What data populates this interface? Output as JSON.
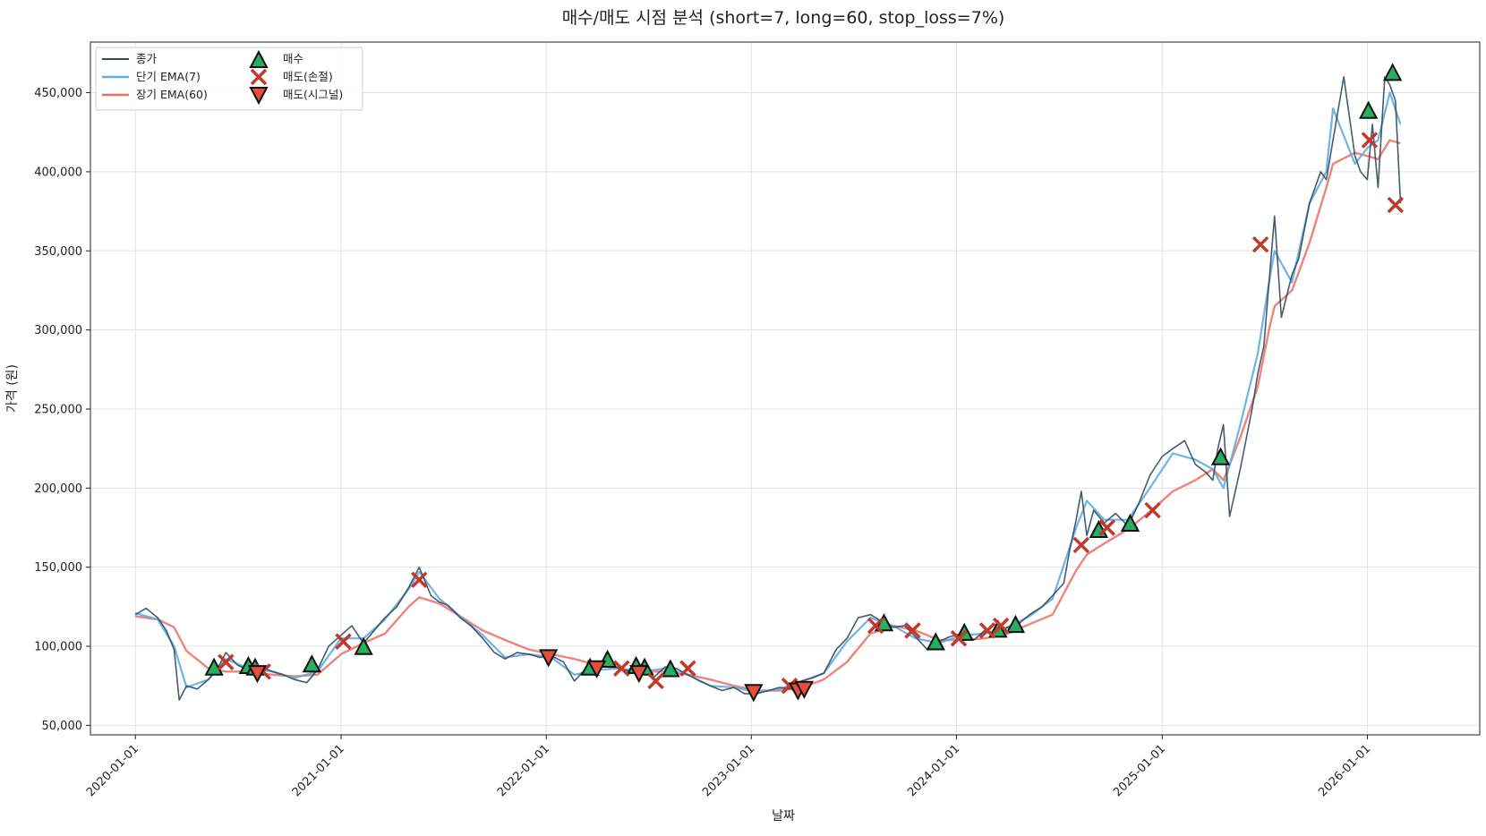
{
  "chart_data": {
    "type": "line",
    "title": "매수/매도 시점 분석 (short=7, long=60, stop_loss=7%)",
    "xlabel": "날짜",
    "ylabel": "가격 (원)",
    "xlim": [
      "2019-10-13",
      "2026-07-20"
    ],
    "ylim": [
      44000,
      482000
    ],
    "grid": true,
    "legend_position": "top-left",
    "x_ticks": [
      "2020-01-01",
      "2021-01-01",
      "2022-01-01",
      "2023-01-01",
      "2024-01-01",
      "2025-01-01",
      "2026-01-01"
    ],
    "y_ticks": [
      50000,
      100000,
      150000,
      200000,
      250000,
      300000,
      350000,
      400000,
      450000
    ],
    "y_tick_labels": [
      "50,000",
      "100,000",
      "150,000",
      "200,000",
      "250,000",
      "300,000",
      "350,000",
      "400,000",
      "450,000"
    ],
    "colors": {
      "close": "#34495e",
      "ema_short": "#5dade2",
      "ema_long": "#ec7063",
      "buy": "#27ae60",
      "sell_stop": "#c0392b",
      "sell_signal": "#e74c3c"
    },
    "series": [
      {
        "name": "종가",
        "key": "close",
        "x": [
          "2020-01-01",
          "2020-01-20",
          "2020-02-10",
          "2020-02-25",
          "2020-03-10",
          "2020-03-19",
          "2020-04-01",
          "2020-04-20",
          "2020-05-10",
          "2020-05-25",
          "2020-06-10",
          "2020-07-01",
          "2020-07-20",
          "2020-08-10",
          "2020-09-01",
          "2020-09-20",
          "2020-10-10",
          "2020-11-01",
          "2020-11-20",
          "2020-12-10",
          "2021-01-01",
          "2021-01-20",
          "2021-02-10",
          "2021-03-01",
          "2021-03-20",
          "2021-04-10",
          "2021-05-01",
          "2021-05-20",
          "2021-06-10",
          "2021-06-25",
          "2021-07-10",
          "2021-08-01",
          "2021-08-20",
          "2021-09-10",
          "2021-10-01",
          "2021-10-20",
          "2021-11-10",
          "2021-12-01",
          "2021-12-20",
          "2022-01-10",
          "2022-02-01",
          "2022-02-20",
          "2022-03-10",
          "2022-04-01",
          "2022-04-20",
          "2022-05-10",
          "2022-06-01",
          "2022-06-20",
          "2022-07-10",
          "2022-08-01",
          "2022-08-20",
          "2022-09-10",
          "2022-10-01",
          "2022-10-20",
          "2022-11-10",
          "2022-12-01",
          "2022-12-20",
          "2023-01-10",
          "2023-02-01",
          "2023-02-20",
          "2023-03-10",
          "2023-04-01",
          "2023-04-20",
          "2023-05-10",
          "2023-06-01",
          "2023-06-20",
          "2023-07-10",
          "2023-08-01",
          "2023-08-20",
          "2023-09-10",
          "2023-10-01",
          "2023-10-20",
          "2023-11-10",
          "2023-12-01",
          "2023-12-20",
          "2024-01-10",
          "2024-02-01",
          "2024-02-20",
          "2024-03-10",
          "2024-04-01",
          "2024-04-20",
          "2024-05-10",
          "2024-06-01",
          "2024-06-20",
          "2024-07-10",
          "2024-07-20",
          "2024-08-01",
          "2024-08-10",
          "2024-08-20",
          "2024-09-01",
          "2024-09-20",
          "2024-10-10",
          "2024-11-01",
          "2024-11-20",
          "2024-12-10",
          "2025-01-01",
          "2025-01-20",
          "2025-02-10",
          "2025-03-01",
          "2025-03-20",
          "2025-04-01",
          "2025-04-10",
          "2025-04-20",
          "2025-05-01",
          "2025-05-20",
          "2025-06-10",
          "2025-06-20",
          "2025-07-01",
          "2025-07-10",
          "2025-07-20",
          "2025-08-01",
          "2025-08-20",
          "2025-09-01",
          "2025-09-20",
          "2025-10-10",
          "2025-10-20",
          "2025-11-01",
          "2025-11-20",
          "2025-12-10",
          "2025-12-20",
          "2026-01-01",
          "2026-01-10",
          "2026-01-20",
          "2026-02-01",
          "2026-02-10",
          "2026-02-20",
          "2026-03-01"
        ],
        "values": [
          120000,
          124000,
          118000,
          110000,
          98000,
          66000,
          75000,
          73000,
          79000,
          85000,
          96000,
          88000,
          85000,
          87000,
          84000,
          82000,
          79000,
          77000,
          85000,
          100000,
          107000,
          113000,
          102000,
          110000,
          118000,
          125000,
          137000,
          150000,
          132000,
          128000,
          126000,
          118000,
          113000,
          105000,
          96000,
          92000,
          96000,
          95000,
          93000,
          94000,
          90000,
          78000,
          85000,
          84000,
          90000,
          86000,
          84000,
          84000,
          80000,
          87000,
          86000,
          82000,
          78000,
          75000,
          72000,
          74000,
          70000,
          70000,
          72000,
          74000,
          73000,
          78000,
          80000,
          83000,
          98000,
          105000,
          118000,
          120000,
          116000,
          112000,
          113000,
          106000,
          98000,
          103000,
          106000,
          108000,
          104000,
          110000,
          107000,
          112000,
          114000,
          120000,
          125000,
          132000,
          140000,
          160000,
          180000,
          198000,
          170000,
          186000,
          178000,
          184000,
          176000,
          190000,
          208000,
          220000,
          225000,
          230000,
          215000,
          210000,
          205000,
          225000,
          240000,
          182000,
          212000,
          250000,
          272000,
          290000,
          330000,
          372000,
          308000,
          335000,
          345000,
          380000,
          400000,
          395000,
          420000,
          460000,
          410000,
          400000,
          395000,
          430000,
          390000,
          460000,
          455000,
          445000,
          380000
        ],
        "visible_text": true
      },
      {
        "name": "단기 EMA(7)",
        "key": "ema_short",
        "x": [
          "2020-01-01",
          "2020-02-10",
          "2020-03-10",
          "2020-04-01",
          "2020-05-10",
          "2020-06-10",
          "2020-07-20",
          "2020-09-01",
          "2020-10-10",
          "2020-11-20",
          "2021-01-01",
          "2021-02-10",
          "2021-03-20",
          "2021-05-01",
          "2021-05-20",
          "2021-06-25",
          "2021-08-01",
          "2021-09-10",
          "2021-10-20",
          "2021-12-01",
          "2022-01-10",
          "2022-02-20",
          "2022-04-01",
          "2022-05-10",
          "2022-06-20",
          "2022-08-01",
          "2022-09-10",
          "2022-10-20",
          "2022-12-01",
          "2023-01-10",
          "2023-02-20",
          "2023-04-01",
          "2023-05-10",
          "2023-06-20",
          "2023-08-01",
          "2023-09-10",
          "2023-10-20",
          "2023-12-01",
          "2024-01-10",
          "2024-02-20",
          "2024-04-01",
          "2024-05-10",
          "2024-06-20",
          "2024-08-01",
          "2024-08-20",
          "2024-09-20",
          "2024-11-01",
          "2024-12-10",
          "2025-01-20",
          "2025-03-01",
          "2025-04-01",
          "2025-04-20",
          "2025-05-20",
          "2025-06-20",
          "2025-07-10",
          "2025-07-20",
          "2025-08-20",
          "2025-09-20",
          "2025-10-20",
          "2025-11-01",
          "2025-12-10",
          "2026-01-01",
          "2026-01-20",
          "2026-02-10",
          "2026-03-01"
        ],
        "values": [
          121000,
          117000,
          100000,
          74000,
          79000,
          92000,
          86000,
          84000,
          80000,
          84000,
          105000,
          105000,
          117000,
          136000,
          147000,
          130000,
          119000,
          107000,
          93000,
          95000,
          93000,
          82000,
          85000,
          86000,
          84000,
          86000,
          82000,
          75000,
          74000,
          71000,
          73000,
          78000,
          83000,
          103000,
          118000,
          113000,
          105000,
          102000,
          107000,
          108000,
          112000,
          119000,
          130000,
          175000,
          192000,
          180000,
          180000,
          200000,
          222000,
          218000,
          212000,
          200000,
          240000,
          285000,
          330000,
          350000,
          330000,
          380000,
          400000,
          440000,
          405000,
          415000,
          420000,
          450000,
          430000
        ]
      },
      {
        "name": "장기 EMA(60)",
        "key": "ema_long",
        "x": [
          "2020-01-01",
          "2020-02-10",
          "2020-03-10",
          "2020-04-01",
          "2020-05-10",
          "2020-06-10",
          "2020-07-20",
          "2020-09-01",
          "2020-10-10",
          "2020-11-20",
          "2021-01-01",
          "2021-02-10",
          "2021-03-20",
          "2021-05-01",
          "2021-05-20",
          "2021-06-25",
          "2021-08-01",
          "2021-09-10",
          "2021-10-20",
          "2021-12-01",
          "2022-01-10",
          "2022-02-20",
          "2022-04-01",
          "2022-05-10",
          "2022-06-20",
          "2022-08-01",
          "2022-09-10",
          "2022-10-20",
          "2022-12-01",
          "2023-01-10",
          "2023-02-20",
          "2023-04-01",
          "2023-05-10",
          "2023-06-20",
          "2023-08-01",
          "2023-09-10",
          "2023-10-20",
          "2023-12-01",
          "2024-01-10",
          "2024-02-20",
          "2024-04-01",
          "2024-05-10",
          "2024-06-20",
          "2024-08-01",
          "2024-08-20",
          "2024-09-20",
          "2024-11-01",
          "2024-12-10",
          "2025-01-20",
          "2025-03-01",
          "2025-04-01",
          "2025-04-20",
          "2025-05-20",
          "2025-06-20",
          "2025-07-10",
          "2025-07-20",
          "2025-08-20",
          "2025-09-20",
          "2025-10-20",
          "2025-11-01",
          "2025-12-10",
          "2026-01-01",
          "2026-01-20",
          "2026-02-10",
          "2026-03-01"
        ],
        "values": [
          119000,
          117000,
          112000,
          97000,
          86000,
          84000,
          84000,
          82000,
          81000,
          82000,
          95000,
          102000,
          108000,
          125000,
          131000,
          127000,
          119000,
          110000,
          104000,
          98000,
          95000,
          92000,
          88000,
          86000,
          84000,
          84000,
          82000,
          79000,
          75000,
          72000,
          72000,
          74000,
          79000,
          90000,
          108000,
          113000,
          110000,
          104000,
          104000,
          105000,
          108000,
          114000,
          120000,
          148000,
          158000,
          165000,
          174000,
          185000,
          198000,
          205000,
          212000,
          205000,
          232000,
          264000,
          300000,
          315000,
          325000,
          355000,
          390000,
          405000,
          412000,
          410000,
          408000,
          420000,
          418000
        ]
      }
    ],
    "markers": [
      {
        "name": "매수",
        "key": "buy",
        "shape": "triangle-up",
        "points": [
          [
            "2020-05-20",
            86000
          ],
          [
            "2020-07-20",
            87000
          ],
          [
            "2020-08-01",
            86000
          ],
          [
            "2020-11-10",
            88000
          ],
          [
            "2021-02-10",
            99000
          ],
          [
            "2022-03-20",
            86000
          ],
          [
            "2022-04-20",
            91000
          ],
          [
            "2022-06-10",
            87000
          ],
          [
            "2022-06-25",
            86000
          ],
          [
            "2022-08-10",
            85000
          ],
          [
            "2023-08-25",
            114000
          ],
          [
            "2023-11-25",
            102000
          ],
          [
            "2024-01-15",
            108000
          ],
          [
            "2024-03-15",
            110000
          ],
          [
            "2024-04-15",
            113000
          ],
          [
            "2024-09-10",
            173000
          ],
          [
            "2024-11-05",
            177000
          ],
          [
            "2025-04-15",
            219000
          ],
          [
            "2026-01-03",
            438000
          ],
          [
            "2026-02-15",
            462000
          ]
        ]
      },
      {
        "name": "매도(손절)",
        "key": "sell_stop",
        "shape": "x",
        "points": [
          [
            "2020-06-10",
            90000
          ],
          [
            "2020-08-15",
            84000
          ],
          [
            "2021-01-05",
            103000
          ],
          [
            "2021-05-20",
            142000
          ],
          [
            "2022-05-15",
            86000
          ],
          [
            "2022-07-15",
            78000
          ],
          [
            "2022-09-10",
            86000
          ],
          [
            "2023-03-10",
            75000
          ],
          [
            "2023-08-10",
            113000
          ],
          [
            "2023-10-15",
            110000
          ],
          [
            "2024-01-05",
            105000
          ],
          [
            "2024-02-25",
            110000
          ],
          [
            "2024-03-20",
            113000
          ],
          [
            "2024-08-10",
            164000
          ],
          [
            "2024-09-25",
            175000
          ],
          [
            "2024-12-15",
            186000
          ],
          [
            "2025-06-25",
            354000
          ],
          [
            "2026-01-05",
            420000
          ],
          [
            "2026-02-20",
            379000
          ]
        ]
      },
      {
        "name": "매도(시그널)",
        "key": "sell_signal",
        "shape": "triangle-down",
        "points": [
          [
            "2020-08-05",
            83000
          ],
          [
            "2022-01-05",
            93000
          ],
          [
            "2022-04-01",
            86000
          ],
          [
            "2022-06-15",
            83000
          ],
          [
            "2023-01-05",
            71000
          ],
          [
            "2023-03-25",
            72000
          ],
          [
            "2023-04-05",
            73000
          ]
        ]
      }
    ]
  }
}
